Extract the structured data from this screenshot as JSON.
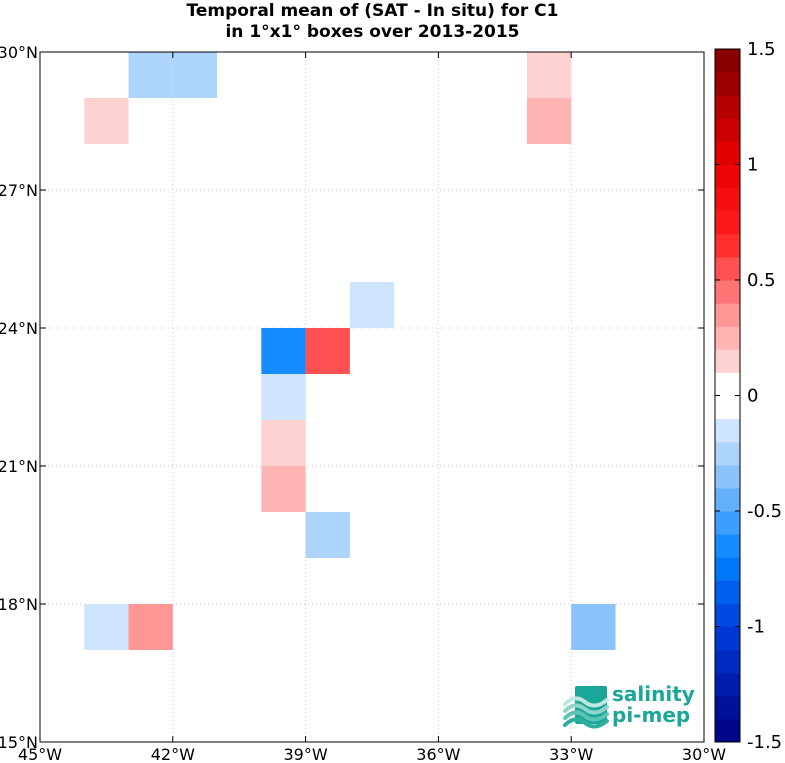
{
  "chart_data": {
    "type": "heatmap",
    "title_line1": "Temporal mean of (SAT - In situ) for C1",
    "title_line2": "in 1°x1° boxes over 2013-2015",
    "xlim": [
      -45,
      -30
    ],
    "ylim": [
      15,
      30
    ],
    "x_ticks": [
      {
        "value": -45,
        "label": "45°W"
      },
      {
        "value": -42,
        "label": "42°W"
      },
      {
        "value": -39,
        "label": "39°W"
      },
      {
        "value": -36,
        "label": "36°W"
      },
      {
        "value": -33,
        "label": "33°W"
      },
      {
        "value": -30,
        "label": "30°W"
      }
    ],
    "y_ticks": [
      {
        "value": 30,
        "label": "30°N"
      },
      {
        "value": 27,
        "label": "27°N"
      },
      {
        "value": 24,
        "label": "24°N"
      },
      {
        "value": 21,
        "label": "21°N"
      },
      {
        "value": 18,
        "label": "18°N"
      },
      {
        "value": 15,
        "label": "15°N"
      }
    ],
    "grid": true,
    "colorbar": {
      "range": [
        -1.5,
        1.5
      ],
      "step": 0.1,
      "tick_labels": [
        {
          "value": 1.5,
          "label": "1.5"
        },
        {
          "value": 1.0,
          "label": "1"
        },
        {
          "value": 0.5,
          "label": "0.5"
        },
        {
          "value": 0.0,
          "label": "0"
        },
        {
          "value": -0.5,
          "label": "-0.5"
        },
        {
          "value": -1.0,
          "label": "-1"
        },
        {
          "value": -1.5,
          "label": "-1.5"
        }
      ]
    },
    "cells": [
      {
        "lon": -43,
        "lat": 29,
        "value": -0.25
      },
      {
        "lon": -42,
        "lat": 29,
        "value": -0.25
      },
      {
        "lon": -44,
        "lat": 28,
        "value": 0.15
      },
      {
        "lon": -34,
        "lat": 29,
        "value": 0.15
      },
      {
        "lon": -34,
        "lat": 28,
        "value": 0.25
      },
      {
        "lon": -38,
        "lat": 24,
        "value": -0.15
      },
      {
        "lon": -40,
        "lat": 23,
        "value": -0.65
      },
      {
        "lon": -39,
        "lat": 23,
        "value": 0.55
      },
      {
        "lon": -40,
        "lat": 22,
        "value": -0.15
      },
      {
        "lon": -40,
        "lat": 21,
        "value": 0.15
      },
      {
        "lon": -40,
        "lat": 20,
        "value": 0.25
      },
      {
        "lon": -39,
        "lat": 19,
        "value": -0.25
      },
      {
        "lon": -44,
        "lat": 17,
        "value": -0.15
      },
      {
        "lon": -43,
        "lat": 17,
        "value": 0.35
      },
      {
        "lon": -33,
        "lat": 17,
        "value": -0.35
      }
    ]
  },
  "logo": {
    "line1": "salinity",
    "line2": "pi-mep",
    "color": "#1aa79a"
  }
}
